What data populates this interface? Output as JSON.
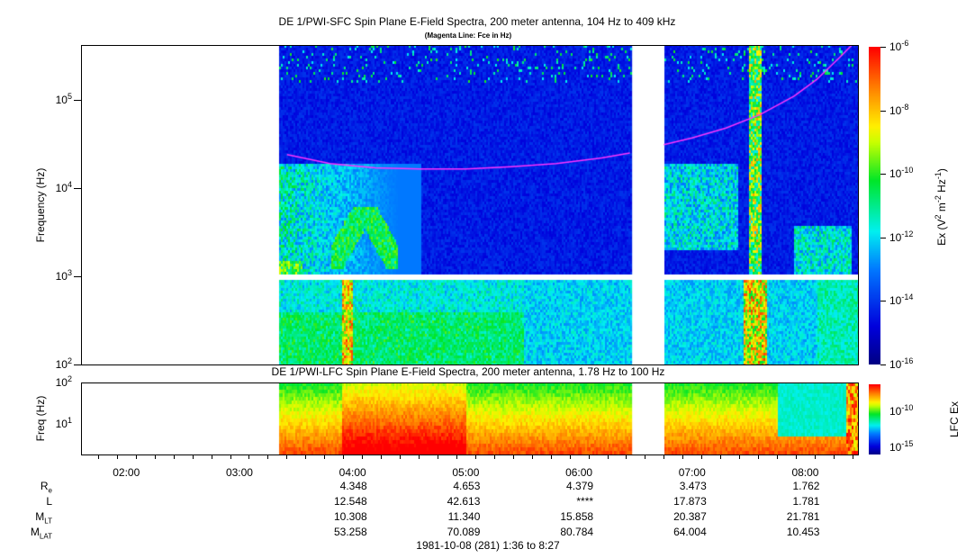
{
  "chart_data": [
    {
      "type": "heatmap",
      "title": "DE 1/PWI-SFC  Spin Plane E-Field Spectra, 200 meter antenna, 104 Hz to 409 kHz",
      "subtitle": "(Magenta Line: Fce in Hz)",
      "ylabel": "Frequency (Hz)",
      "yscale": "log",
      "ylim": [
        100,
        409000
      ],
      "y_ticks": [
        {
          "base": "10",
          "exp": "2",
          "value": 100
        },
        {
          "base": "10",
          "exp": "3",
          "value": 1000
        },
        {
          "base": "10",
          "exp": "4",
          "value": 10000
        },
        {
          "base": "10",
          "exp": "5",
          "value": 100000
        }
      ],
      "xlim_hours": [
        1.6,
        8.45
      ],
      "data_start_hours": 3.34,
      "data_gap_hours": [
        6.47,
        6.75
      ],
      "colorbar": {
        "label_prefix": "Ex (V",
        "label": "Ex (V^2 m^-2 Hz^-1)",
        "scale": "log",
        "range_log10": [
          -16,
          -6
        ],
        "ticks": [
          "-6",
          "-8",
          "-10",
          "-12",
          "-14",
          "-16"
        ]
      },
      "fce_line": {
        "color": "#ff33ff",
        "points": [
          [
            3.42,
            24000
          ],
          [
            3.8,
            19000
          ],
          [
            4.2,
            17000
          ],
          [
            4.6,
            16500
          ],
          [
            5.0,
            16500
          ],
          [
            5.4,
            17500
          ],
          [
            5.8,
            19000
          ],
          [
            6.2,
            22000
          ],
          [
            6.45,
            25000
          ],
          [
            6.75,
            31000
          ],
          [
            7.0,
            37000
          ],
          [
            7.3,
            48000
          ],
          [
            7.6,
            68000
          ],
          [
            7.9,
            110000
          ],
          [
            8.1,
            170000
          ],
          [
            8.3,
            300000
          ],
          [
            8.42,
            430000
          ]
        ]
      }
    },
    {
      "type": "heatmap",
      "title": "DE 1/PWI-LFC  Spin Plane E-Field Spectra, 200 meter antenna, 1.78 Hz to 100 Hz",
      "ylabel": "Freq (Hz)",
      "yscale": "log",
      "ylim": [
        1.78,
        100
      ],
      "y_ticks": [
        {
          "base": "10",
          "exp": "1",
          "value": 10
        },
        {
          "base": "10",
          "exp": "2",
          "value": 100
        }
      ],
      "colorbar": {
        "label": "LFC Ex",
        "scale": "log",
        "ticks": [
          "-10",
          "-15"
        ]
      }
    }
  ],
  "x_ticks": [
    {
      "label": "02:00",
      "h": 2
    },
    {
      "label": "03:00",
      "h": 3
    },
    {
      "label": "04:00",
      "h": 4
    },
    {
      "label": "05:00",
      "h": 5
    },
    {
      "label": "06:00",
      "h": 6
    },
    {
      "label": "07:00",
      "h": 7
    },
    {
      "label": "08:00",
      "h": 8
    }
  ],
  "ephemeris": {
    "rows": [
      {
        "name": "R",
        "sub": "e",
        "values": [
          "4.348",
          "4.653",
          "4.379",
          "3.473",
          "1.762"
        ]
      },
      {
        "name": "L",
        "sub": "",
        "values": [
          "12.548",
          "42.613",
          "****",
          "17.873",
          "1.781"
        ]
      },
      {
        "name": "M",
        "sub": "LT",
        "values": [
          "10.308",
          "11.340",
          "15.858",
          "20.387",
          "21.781"
        ]
      },
      {
        "name": "M",
        "sub": "LAT",
        "values": [
          "53.258",
          "70.089",
          "80.784",
          "64.004",
          "10.453"
        ]
      }
    ],
    "hours": [
      4,
      5,
      6,
      7,
      8
    ]
  },
  "footer": "1981-10-08 (281) 1:36 to 8:27"
}
